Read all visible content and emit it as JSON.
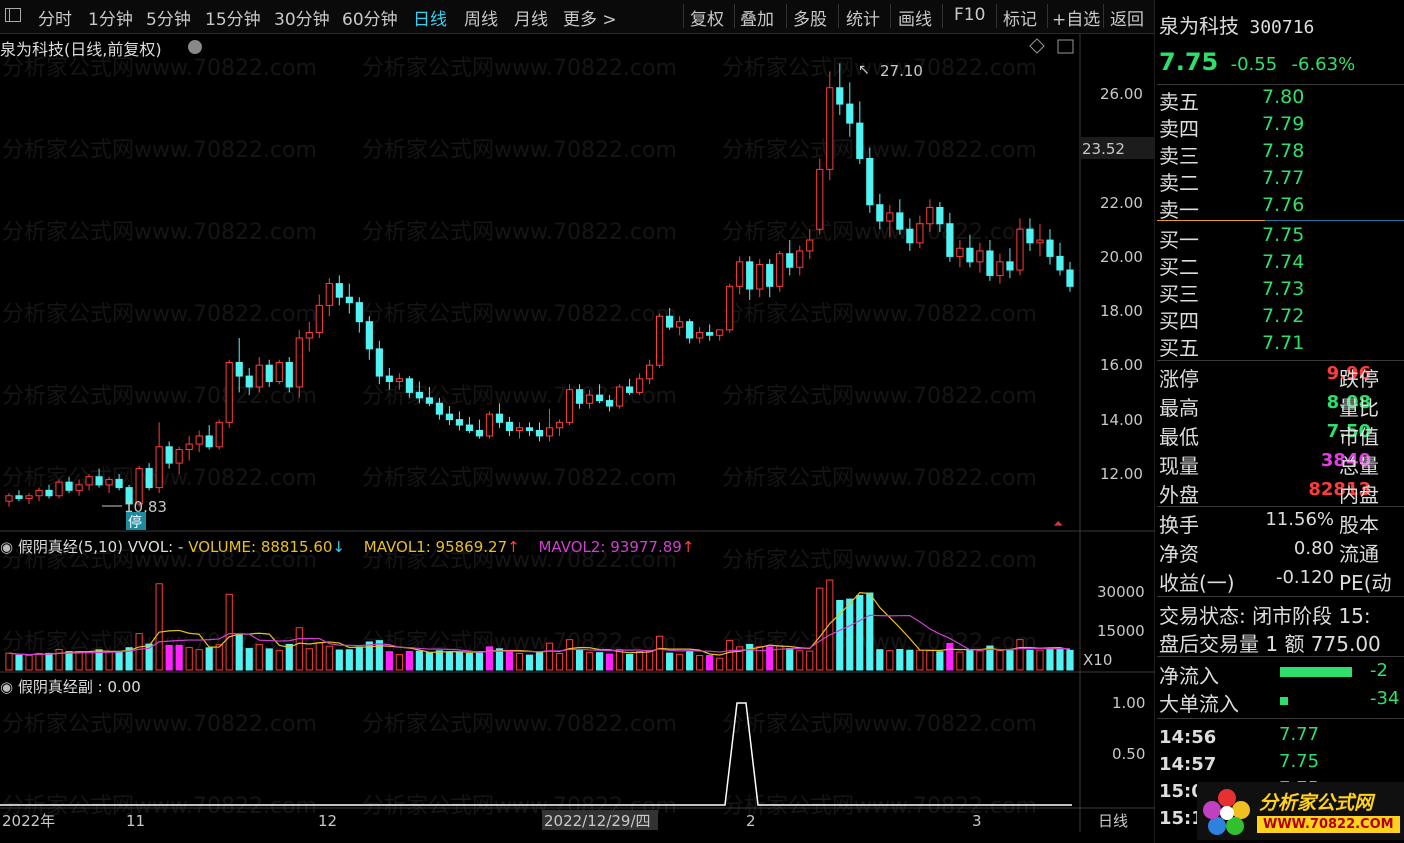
{
  "toolbar": {
    "periods": [
      "分时",
      "1分钟",
      "5分钟",
      "15分钟",
      "30分钟",
      "60分钟",
      "日线",
      "周线",
      "月线",
      "更多 >"
    ],
    "active": "日线",
    "actions": [
      "复权",
      "叠加",
      "多股",
      "统计",
      "画线",
      "F10",
      "标记",
      "+自选",
      "返回"
    ]
  },
  "chart": {
    "title": "泉为科技(日线,前复权)",
    "price_ticks": [
      "26.00",
      "22.00",
      "20.00",
      "18.00",
      "16.00",
      "14.00",
      "12.00"
    ],
    "current_price_tag": "23.52",
    "high_label": "27.10",
    "low_label": "10.83",
    "suspend_label": "停",
    "x_labels": [
      "2022年",
      "11",
      "12",
      "2022/12/29/四",
      "2",
      "3"
    ],
    "period_label": "日线",
    "watermark": "分析家公式网www.70822.com"
  },
  "volume": {
    "indicator": "假阴真经(5,10)",
    "vvol": "VVOL: -",
    "volume": "VOLUME: 88815.60",
    "mavol1": "MAVOL1: 95869.27",
    "mavol2": "MAVOL2: 93977.89",
    "ticks": [
      "30000",
      "15000"
    ],
    "unit": "X10"
  },
  "sub": {
    "indicator": "假阴真经副 : 0.00",
    "ticks": [
      "1.00",
      "0.50"
    ]
  },
  "quote": {
    "name": "泉为科技",
    "code": "300716",
    "price": "7.75",
    "change": "-0.55",
    "pct": "-6.63%",
    "asks": [
      {
        "label": "卖五",
        "price": "7.80"
      },
      {
        "label": "卖四",
        "price": "7.79"
      },
      {
        "label": "卖三",
        "price": "7.78"
      },
      {
        "label": "卖二",
        "price": "7.77"
      },
      {
        "label": "卖一",
        "price": "7.76"
      }
    ],
    "bids": [
      {
        "label": "买一",
        "price": "7.75"
      },
      {
        "label": "买二",
        "price": "7.74"
      },
      {
        "label": "买三",
        "price": "7.73"
      },
      {
        "label": "买四",
        "price": "7.72"
      },
      {
        "label": "买五",
        "price": "7.71"
      }
    ],
    "stats": [
      {
        "l": "涨停",
        "v": "9.96",
        "r": "跌停",
        "c": "#ff3c3c"
      },
      {
        "l": "最高",
        "v": "8.08",
        "r": "量比",
        "c": "#2ee06a"
      },
      {
        "l": "最低",
        "v": "7.50",
        "r": "市值",
        "c": "#2ee06a"
      },
      {
        "l": "现量",
        "v": "3840",
        "r": "总量",
        "c": "#e040e0"
      },
      {
        "l": "外盘",
        "v": "82813",
        "r": "内盘",
        "c": "#ff3c3c"
      }
    ],
    "stats2": [
      {
        "l": "换手",
        "v": "11.56%",
        "r": "股本"
      },
      {
        "l": "净资",
        "v": "0.80",
        "r": "流通"
      },
      {
        "l": "收益(一)",
        "v": "-0.120",
        "r": "PE(动"
      }
    ],
    "trade_status": "交易状态: 闭市阶段 15:",
    "after_hours": "盘后交易量 1 额 775.00",
    "net_inflow": "净流入",
    "net_inflow_v": "-2",
    "big_inflow": "大单流入",
    "big_inflow_v": "-34",
    "ticks": [
      {
        "t": "14:56",
        "p": "7.77"
      },
      {
        "t": "14:57",
        "p": "7.75"
      },
      {
        "t": "15:00",
        "p": "7.75"
      },
      {
        "t": "15:1",
        "p": ""
      }
    ]
  },
  "logo": {
    "name": "分析家公式网",
    "url": "WWW.70822.COM"
  }
}
